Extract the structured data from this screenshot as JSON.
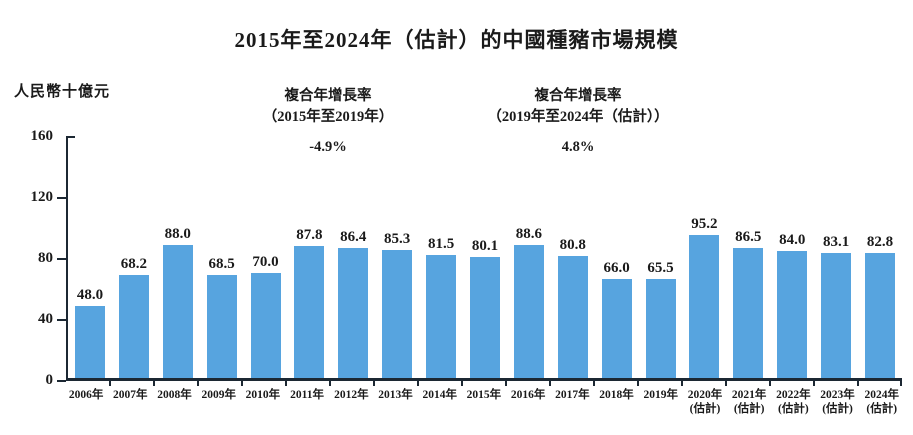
{
  "title": "2015年至2024年（估計）的中國種豬市場規模",
  "unit_label": "人民幣十億元",
  "annotations": [
    {
      "line1": "複合年增長率",
      "line2": "（2015年至2019年）",
      "value": "-4.9%"
    },
    {
      "line1": "複合年增長率",
      "line2": "（2019年至2024年（估計））",
      "value": "4.8%"
    }
  ],
  "colors": {
    "bar": "#57A4DF",
    "axis": "#1C2833",
    "text": "#1A1A1A"
  },
  "chart_data": {
    "type": "bar",
    "title": "2015年至2024年（估計）的中國種豬市場規模",
    "ylabel": "人民幣十億元",
    "xlabel": "",
    "ylim": [
      0,
      160
    ],
    "yticks": [
      0,
      40,
      80,
      120,
      160
    ],
    "grid": false,
    "legend": null,
    "cagr_2015_2019": "-4.9%",
    "cagr_2019_2024e": "4.8%",
    "categories": [
      [
        "2006年"
      ],
      [
        "2007年"
      ],
      [
        "2008年"
      ],
      [
        "2009年"
      ],
      [
        "2010年"
      ],
      [
        "2011年"
      ],
      [
        "2012年"
      ],
      [
        "2013年"
      ],
      [
        "2014年"
      ],
      [
        "2015年"
      ],
      [
        "2016年"
      ],
      [
        "2017年"
      ],
      [
        "2018年"
      ],
      [
        "2019年"
      ],
      [
        "2020年",
        "(估計)"
      ],
      [
        "2021年",
        "(估計)"
      ],
      [
        "2022年",
        "(估計)"
      ],
      [
        "2023年",
        "(估計)"
      ],
      [
        "2024年",
        "(估計)"
      ]
    ],
    "values": [
      48.0,
      68.2,
      88.0,
      68.5,
      70.0,
      87.8,
      86.4,
      85.3,
      81.5,
      80.1,
      88.6,
      80.8,
      66.0,
      65.5,
      95.2,
      86.5,
      84.0,
      83.1,
      82.8
    ]
  }
}
